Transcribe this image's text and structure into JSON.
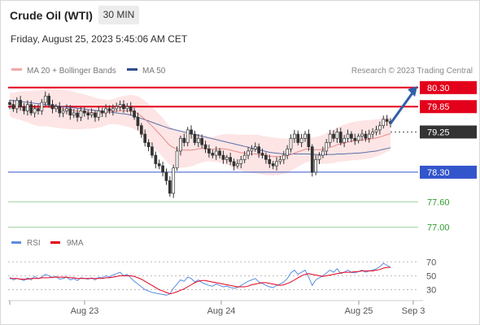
{
  "header": {
    "title": "Crude Oil (WTI)",
    "timeframe": "30 MIN",
    "datetime": "Friday, August 25, 2023 5:45:06 AM CET"
  },
  "legend": {
    "ma20_label": "MA 20 + Bollinger Bands",
    "ma50_label": "MA 50",
    "copyright": "Research © 2023 Trading Central"
  },
  "colors": {
    "resistance": "#e3001b",
    "support": "#3355cc",
    "target": "#2e9a2e",
    "pivot": "#333333",
    "bollinger_fill": "#fde2e2",
    "ma20": "#e88a8a",
    "ma50": "#5a6fa8",
    "rsi": "#5b8de0",
    "rsi_ma": "#e3001b",
    "arrow": "#2f5fa8"
  },
  "chart_data": [
    {
      "type": "candlestick",
      "title": "",
      "ylim": [
        76.8,
        80.45
      ],
      "x_ticks": [
        "Aug 23",
        "Aug 24",
        "Aug 25",
        "Sep 3"
      ],
      "levels": [
        {
          "label": "80.30",
          "value": 80.3,
          "kind": "resistance"
        },
        {
          "label": "79.85",
          "value": 79.85,
          "kind": "resistance"
        },
        {
          "label": "79.25",
          "value": 79.25,
          "kind": "pivot"
        },
        {
          "label": "78.30",
          "value": 78.3,
          "kind": "support"
        },
        {
          "label": "77.60",
          "value": 77.6,
          "kind": "target"
        },
        {
          "label": "77.00",
          "value": 77.0,
          "kind": "target"
        }
      ],
      "close": [
        79.9,
        79.8,
        80.0,
        79.85,
        79.75,
        79.9,
        79.7,
        79.8,
        79.75,
        79.95,
        80.1,
        79.9,
        79.8,
        79.85,
        79.7,
        79.75,
        79.8,
        79.65,
        79.7,
        79.6,
        79.75,
        79.7,
        79.65,
        79.7,
        79.6,
        79.75,
        79.7,
        79.8,
        79.75,
        79.8,
        79.85,
        79.9,
        79.8,
        79.85,
        79.75,
        79.6,
        79.4,
        79.2,
        79.0,
        78.9,
        78.7,
        78.5,
        78.45,
        78.3,
        78.1,
        77.8,
        78.4,
        78.8,
        79.1,
        79.0,
        79.3,
        79.2,
        79.0,
        79.1,
        78.95,
        78.85,
        78.75,
        78.7,
        78.8,
        78.7,
        78.6,
        78.65,
        78.55,
        78.45,
        78.5,
        78.6,
        78.7,
        78.8,
        78.85,
        78.9,
        78.75,
        78.7,
        78.6,
        78.5,
        78.45,
        78.55,
        78.6,
        78.7,
        78.85,
        79.1,
        79.2,
        79.0,
        79.1,
        79.2,
        78.9,
        78.3,
        78.6,
        78.7,
        78.8,
        79.0,
        79.2,
        79.1,
        79.25,
        79.0,
        79.1,
        79.2,
        79.1,
        79.05,
        79.15,
        79.2,
        79.1,
        79.2,
        79.25,
        79.3,
        79.4,
        79.55,
        79.5,
        79.45
      ],
      "ma20": [
        79.9,
        79.88,
        79.88,
        79.87,
        79.86,
        79.85,
        79.83,
        79.82,
        79.81,
        79.82,
        79.83,
        79.83,
        79.82,
        79.81,
        79.8,
        79.79,
        79.78,
        79.77,
        79.76,
        79.74,
        79.74,
        79.73,
        79.72,
        79.71,
        79.7,
        79.7,
        79.7,
        79.71,
        79.72,
        79.73,
        79.74,
        79.75,
        79.75,
        79.75,
        79.74,
        79.72,
        79.68,
        79.62,
        79.55,
        79.47,
        79.39,
        79.3,
        79.21,
        79.12,
        79.02,
        78.93,
        78.88,
        78.85,
        78.83,
        78.82,
        78.82,
        78.82,
        78.83,
        78.85,
        78.86,
        78.86,
        78.85,
        78.84,
        78.85,
        78.85,
        78.85,
        78.84,
        78.82,
        78.8,
        78.78,
        78.76,
        78.75,
        78.74,
        78.73,
        78.73,
        78.72,
        78.7,
        78.69,
        78.68,
        78.67,
        78.67,
        78.67,
        78.68,
        78.69,
        78.72,
        78.75,
        78.78,
        78.81,
        78.84,
        78.85,
        78.83,
        78.83,
        78.83,
        78.84,
        78.86,
        78.89,
        78.91,
        78.95,
        78.97,
        78.99,
        79.01,
        79.03,
        79.04,
        79.05,
        79.06,
        79.07,
        79.08,
        79.09,
        79.11,
        79.13,
        79.16,
        79.19,
        79.21
      ],
      "ma50": [
        80.0,
        79.99,
        79.98,
        79.97,
        79.96,
        79.95,
        79.94,
        79.93,
        79.92,
        79.91,
        79.9,
        79.89,
        79.88,
        79.87,
        79.86,
        79.85,
        79.84,
        79.83,
        79.82,
        79.81,
        79.8,
        79.79,
        79.78,
        79.77,
        79.76,
        79.75,
        79.74,
        79.73,
        79.72,
        79.71,
        79.7,
        79.69,
        79.68,
        79.67,
        79.65,
        79.63,
        79.6,
        79.57,
        79.54,
        79.51,
        79.48,
        79.45,
        79.42,
        79.39,
        79.36,
        79.33,
        79.31,
        79.29,
        79.27,
        79.25,
        79.23,
        79.21,
        79.19,
        79.17,
        79.15,
        79.13,
        79.11,
        79.09,
        79.07,
        79.05,
        79.03,
        79.01,
        78.99,
        78.97,
        78.95,
        78.93,
        78.91,
        78.89,
        78.87,
        78.85,
        78.83,
        78.81,
        78.79,
        78.77,
        78.76,
        78.75,
        78.74,
        78.73,
        78.73,
        78.73,
        78.73,
        78.73,
        78.73,
        78.73,
        78.73,
        78.72,
        78.72,
        78.72,
        78.72,
        78.72,
        78.72,
        78.72,
        78.73,
        78.73,
        78.73,
        78.74,
        78.74,
        78.75,
        78.75,
        78.76,
        78.77,
        78.78,
        78.79,
        78.8,
        78.82,
        78.84,
        78.86,
        78.88
      ]
    },
    {
      "type": "line",
      "title": "",
      "legend": [
        "RSI",
        "9MA"
      ],
      "ylim": [
        20,
        75
      ],
      "y_ticks": [
        "70",
        "50",
        "30"
      ],
      "rsi": [
        48,
        44,
        46,
        45,
        43,
        47,
        44,
        49,
        46,
        48,
        52,
        50,
        47,
        49,
        45,
        46,
        48,
        44,
        46,
        43,
        47,
        46,
        45,
        47,
        44,
        48,
        47,
        50,
        48,
        51,
        53,
        55,
        50,
        52,
        47,
        42,
        38,
        34,
        30,
        28,
        26,
        25,
        24,
        23,
        22,
        24,
        32,
        38,
        44,
        42,
        48,
        46,
        41,
        44,
        40,
        38,
        36,
        35,
        38,
        36,
        34,
        35,
        33,
        32,
        33,
        36,
        39,
        42,
        44,
        46,
        41,
        39,
        36,
        34,
        33,
        36,
        38,
        41,
        46,
        54,
        58,
        52,
        55,
        58,
        48,
        36,
        44,
        47,
        50,
        54,
        58,
        55,
        60,
        53,
        55,
        58,
        55,
        54,
        56,
        58,
        55,
        57,
        58,
        60,
        63,
        68,
        65,
        62
      ],
      "rsi_ma": [
        46,
        46,
        46,
        45,
        45,
        45,
        46,
        46,
        46,
        47,
        47,
        47,
        48,
        48,
        48,
        48,
        48,
        47,
        47,
        46,
        46,
        46,
        46,
        46,
        46,
        46,
        46,
        47,
        47,
        48,
        49,
        50,
        50,
        50,
        50,
        49,
        47,
        45,
        42,
        39,
        36,
        33,
        30,
        28,
        26,
        24,
        25,
        27,
        29,
        31,
        34,
        37,
        40,
        42,
        43,
        43,
        42,
        41,
        40,
        39,
        38,
        37,
        36,
        35,
        34,
        34,
        34,
        35,
        37,
        38,
        39,
        40,
        40,
        39,
        38,
        37,
        36,
        37,
        39,
        41,
        44,
        47,
        50,
        52,
        53,
        52,
        51,
        50,
        49,
        50,
        51,
        52,
        53,
        54,
        55,
        55,
        55,
        56,
        56,
        57,
        57,
        57,
        57,
        58,
        59,
        61,
        62,
        62
      ]
    }
  ]
}
